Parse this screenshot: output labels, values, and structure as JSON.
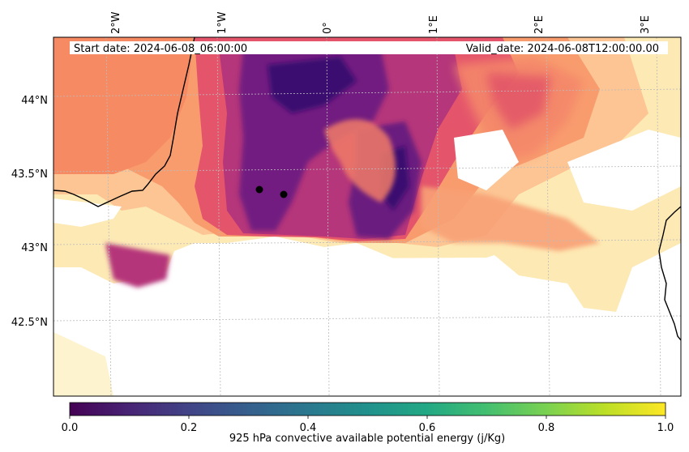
{
  "map": {
    "start_date": "Start date: 2024-06-08_06:00:00",
    "valid_date": "Valid_date: 2024-06-08T12:00:00.00",
    "lon_labels": [
      "2°W",
      "1°W",
      "0°",
      "1°E",
      "2°E",
      "3°E"
    ],
    "lat_labels": [
      "44°N",
      "43.5°N",
      "43°N",
      "42.5°N"
    ],
    "gridlines": true,
    "markers": [
      {
        "lon": "-0.62",
        "lat": "43.39"
      },
      {
        "lon": "-0.40",
        "lat": "43.35"
      }
    ]
  },
  "colorbar": {
    "label": "925 hPa convective available potential energy (j/Kg)",
    "ticks": [
      "0.0",
      "0.2",
      "0.4",
      "0.6",
      "0.8",
      "1.0"
    ],
    "colormap_field": "magma",
    "colormap_bar": "viridis"
  }
}
